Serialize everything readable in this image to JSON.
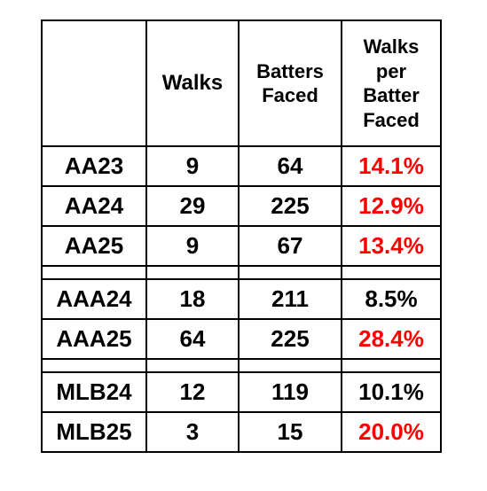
{
  "table": {
    "headers": {
      "corner": "",
      "walks": "Walks",
      "batters_faced_line1": "Batters",
      "batters_faced_line2": "Faced",
      "rate_line1": "Walks",
      "rate_line2": "per",
      "rate_line3": "Batter",
      "rate_line4": "Faced"
    },
    "groups": [
      {
        "rows": [
          {
            "label": "AA23",
            "walks": "9",
            "batters_faced": "64",
            "rate": "14.1%",
            "rate_color": "#ff0000"
          },
          {
            "label": "AA24",
            "walks": "29",
            "batters_faced": "225",
            "rate": "12.9%",
            "rate_color": "#ff0000"
          },
          {
            "label": "AA25",
            "walks": "9",
            "batters_faced": "67",
            "rate": "13.4%",
            "rate_color": "#ff0000"
          }
        ]
      },
      {
        "rows": [
          {
            "label": "AAA24",
            "walks": "18",
            "batters_faced": "211",
            "rate": "8.5%",
            "rate_color": "#000000"
          },
          {
            "label": "AAA25",
            "walks": "64",
            "batters_faced": "225",
            "rate": "28.4%",
            "rate_color": "#ff0000"
          }
        ]
      },
      {
        "rows": [
          {
            "label": "MLB24",
            "walks": "12",
            "batters_faced": "119",
            "rate": "10.1%",
            "rate_color": "#000000"
          },
          {
            "label": "MLB25",
            "walks": "3",
            "batters_faced": "15",
            "rate": "20.0%",
            "rate_color": "#ff0000"
          }
        ]
      }
    ]
  }
}
